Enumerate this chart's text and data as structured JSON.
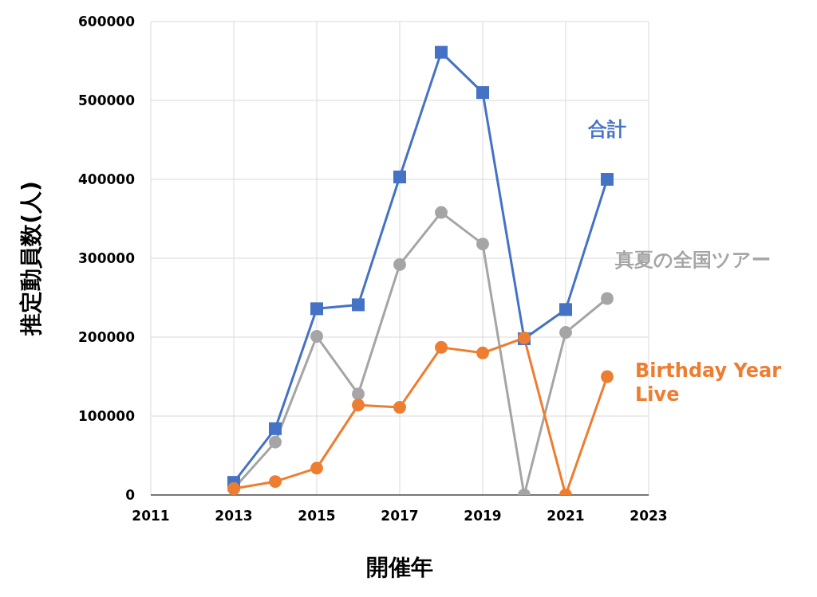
{
  "chart_data": {
    "type": "line",
    "xlabel": "開催年",
    "ylabel": "推定動員数(人)",
    "x": [
      2013,
      2014,
      2015,
      2016,
      2017,
      2018,
      2019,
      2020,
      2021,
      2022
    ],
    "series": [
      {
        "name": "合計",
        "color": "#4472c4",
        "marker": "square",
        "values": [
          16000,
          84000,
          236000,
          241000,
          403000,
          561000,
          510000,
          198000,
          235000,
          400000
        ]
      },
      {
        "name": "真夏の全国ツアー",
        "color": "#a5a5a5",
        "marker": "circle",
        "values": [
          8000,
          67000,
          201000,
          128000,
          292000,
          358000,
          318000,
          0,
          206000,
          249000
        ]
      },
      {
        "name": "Birthday Year Live",
        "color": "#ed7d31",
        "marker": "circle",
        "values": [
          8000,
          17000,
          34000,
          114000,
          111000,
          187000,
          180000,
          199000,
          0,
          150000
        ]
      }
    ],
    "xlim": [
      2011,
      2023
    ],
    "xticks": [
      2011,
      2013,
      2015,
      2017,
      2019,
      2021,
      2023
    ],
    "ylim": [
      0,
      600000
    ],
    "yticks": [
      0,
      100000,
      200000,
      300000,
      400000,
      500000,
      600000
    ],
    "grid": true,
    "legend": false
  }
}
